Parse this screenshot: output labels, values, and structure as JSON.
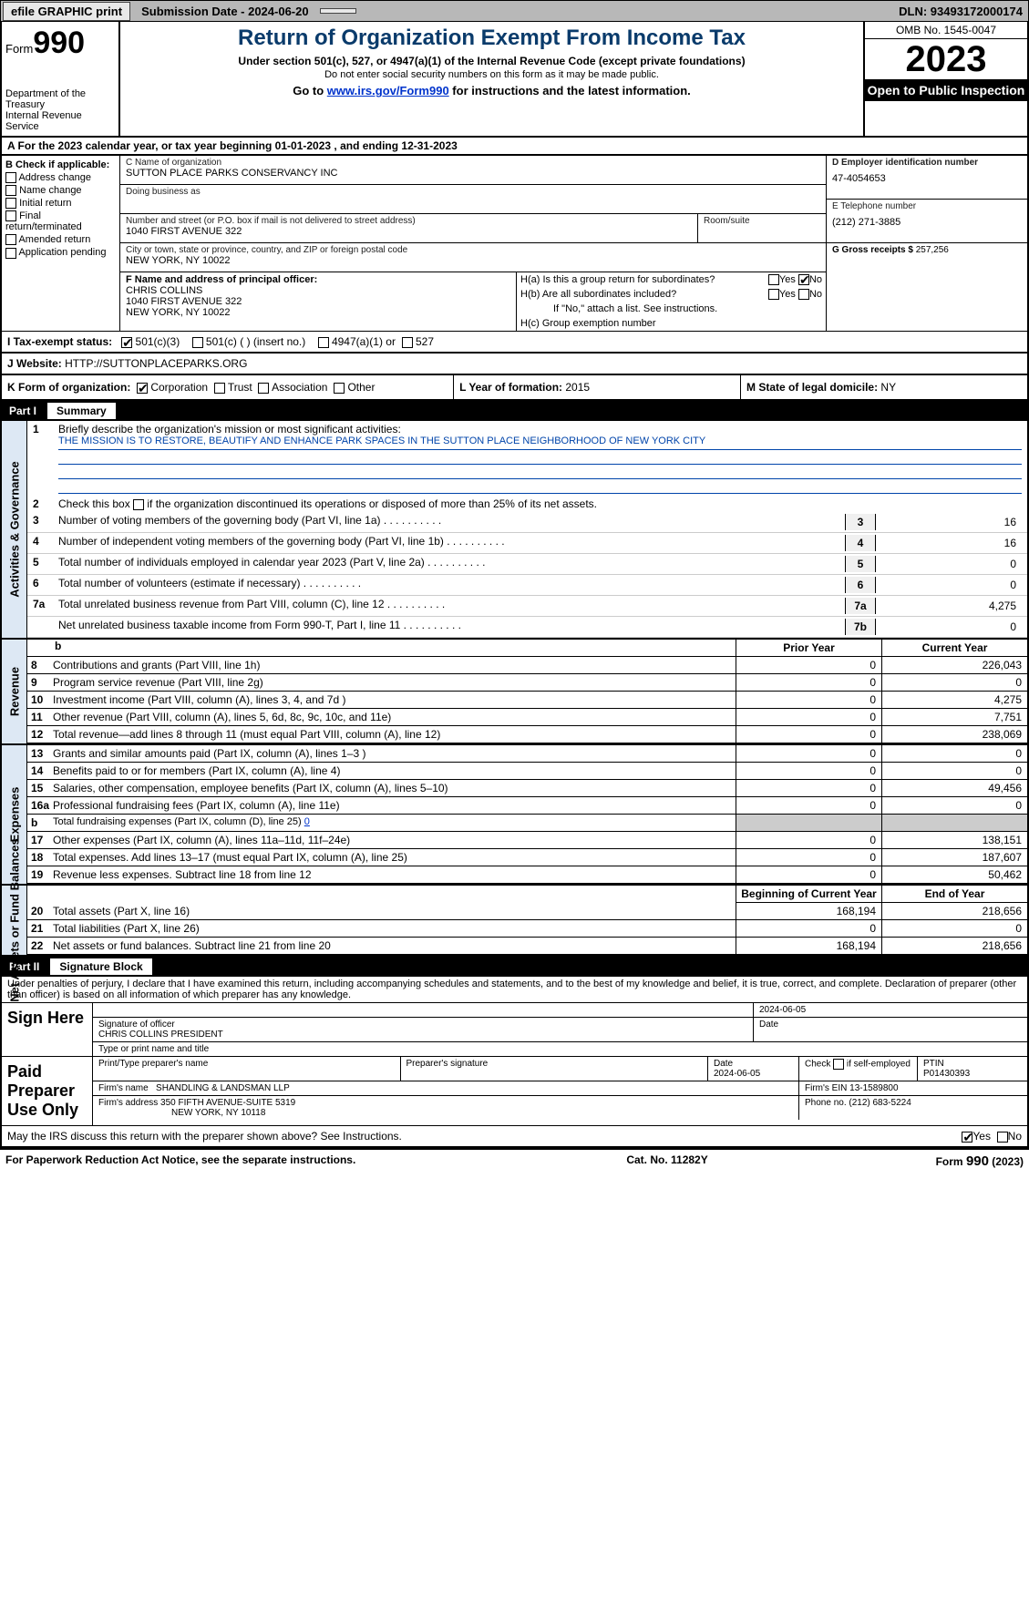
{
  "topbar": {
    "efile": "efile GRAPHIC print",
    "subdate_label": "Submission Date - 2024-06-20",
    "dln": "DLN: 93493172000174"
  },
  "header": {
    "form_label": "Form",
    "form_number": "990",
    "dept": "Department of the Treasury",
    "irs": "Internal Revenue Service",
    "title": "Return of Organization Exempt From Income Tax",
    "sub": "Under section 501(c), 527, or 4947(a)(1) of the Internal Revenue Code (except private foundations)",
    "sub2": "Do not enter social security numbers on this form as it may be made public.",
    "goto_pre": "Go to ",
    "goto_link": "www.irs.gov/Form990",
    "goto_post": " for instructions and the latest information.",
    "omb": "OMB No. 1545-0047",
    "year": "2023",
    "inspect": "Open to Public Inspection"
  },
  "row_a": {
    "pre": "A For the 2023 calendar year, or tax year beginning ",
    "begin": "01-01-2023",
    "mid": "   , and ending ",
    "end": "12-31-2023"
  },
  "col_b": {
    "title": "B Check if applicable:",
    "opts": [
      "Address change",
      "Name change",
      "Initial return",
      "Final return/terminated",
      "Amended return",
      "Application pending"
    ]
  },
  "col_c": {
    "name_lbl": "C Name of organization",
    "name": "SUTTON PLACE PARKS CONSERVANCY INC",
    "dba_lbl": "Doing business as",
    "dba": "",
    "street_lbl": "Number and street (or P.O. box if mail is not delivered to street address)",
    "street": "1040 FIRST AVENUE 322",
    "room_lbl": "Room/suite",
    "city_lbl": "City or town, state or province, country, and ZIP or foreign postal code",
    "city": "NEW YORK, NY  10022",
    "officer_lbl": "F  Name and address of principal officer:",
    "officer_name": "CHRIS COLLINS",
    "officer_addr1": "1040 FIRST AVENUE 322",
    "officer_addr2": "NEW YORK, NY  10022"
  },
  "col_d": {
    "ein_lbl": "D Employer identification number",
    "ein": "47-4054653",
    "tel_lbl": "E Telephone number",
    "tel": "(212) 271-3885",
    "gross_lbl": "G Gross receipts $ ",
    "gross": "257,256"
  },
  "col_h": {
    "ha": "H(a)  Is this a group return for subordinates?",
    "hb": "H(b)  Are all subordinates included?",
    "hb_note": "If \"No,\" attach a list. See instructions.",
    "hc": "H(c)  Group exemption number ",
    "yes": "Yes",
    "no": "No"
  },
  "row_i": {
    "lbl": "I   Tax-exempt status:",
    "o1": "501(c)(3)",
    "o2": "501(c) (  ) (insert no.)",
    "o3": "4947(a)(1) or",
    "o4": "527"
  },
  "row_j": {
    "lbl": "J   Website: ",
    "val": "HTTP://SUTTONPLACEPARKS.ORG"
  },
  "row_k": {
    "lbl": "K Form of organization:",
    "o1": "Corporation",
    "o2": "Trust",
    "o3": "Association",
    "o4": "Other",
    "l_lbl": "L Year of formation: ",
    "l_val": "2015",
    "m_lbl": "M State of legal domicile: ",
    "m_val": "NY"
  },
  "part1": {
    "num": "Part I",
    "title": "Summary",
    "sections": {
      "gov": "Activities & Governance",
      "rev": "Revenue",
      "exp": "Expenses",
      "net": "Net Assets or Fund Balances"
    },
    "l1_lbl": "Briefly describe the organization's mission or most significant activities:",
    "l1_mission": "THE MISSION IS TO RESTORE, BEAUTIFY AND ENHANCE PARK SPACES IN THE SUTTON PLACE NEIGHBORHOOD OF NEW YORK CITY",
    "l2": "Check this box        if the organization discontinued its operations or disposed of more than 25% of its net assets.",
    "lines_gov": [
      {
        "n": "3",
        "t": "Number of voting members of the governing body (Part VI, line 1a)",
        "cell": "3",
        "v": "16"
      },
      {
        "n": "4",
        "t": "Number of independent voting members of the governing body (Part VI, line 1b)",
        "cell": "4",
        "v": "16"
      },
      {
        "n": "5",
        "t": "Total number of individuals employed in calendar year 2023 (Part V, line 2a)",
        "cell": "5",
        "v": "0"
      },
      {
        "n": "6",
        "t": "Total number of volunteers (estimate if necessary)",
        "cell": "6",
        "v": "0"
      },
      {
        "n": "7a",
        "t": "Total unrelated business revenue from Part VIII, column (C), line 12",
        "cell": "7a",
        "v": "4,275"
      },
      {
        "n": "",
        "t": "Net unrelated business taxable income from Form 990-T, Part I, line 11",
        "cell": "7b",
        "v": "0"
      }
    ],
    "hdr_prior": "Prior Year",
    "hdr_curr": "Current Year",
    "lines_rev": [
      {
        "n": "8",
        "t": "Contributions and grants (Part VIII, line 1h)",
        "p": "0",
        "c": "226,043"
      },
      {
        "n": "9",
        "t": "Program service revenue (Part VIII, line 2g)",
        "p": "0",
        "c": "0"
      },
      {
        "n": "10",
        "t": "Investment income (Part VIII, column (A), lines 3, 4, and 7d )",
        "p": "0",
        "c": "4,275"
      },
      {
        "n": "11",
        "t": "Other revenue (Part VIII, column (A), lines 5, 6d, 8c, 9c, 10c, and 11e)",
        "p": "0",
        "c": "7,751"
      },
      {
        "n": "12",
        "t": "Total revenue—add lines 8 through 11 (must equal Part VIII, column (A), line 12)",
        "p": "0",
        "c": "238,069"
      }
    ],
    "lines_exp": [
      {
        "n": "13",
        "t": "Grants and similar amounts paid (Part IX, column (A), lines 1–3 )",
        "p": "0",
        "c": "0"
      },
      {
        "n": "14",
        "t": "Benefits paid to or for members (Part IX, column (A), line 4)",
        "p": "0",
        "c": "0"
      },
      {
        "n": "15",
        "t": "Salaries, other compensation, employee benefits (Part IX, column (A), lines 5–10)",
        "p": "0",
        "c": "49,456"
      },
      {
        "n": "16a",
        "t": "Professional fundraising fees (Part IX, column (A), line 11e)",
        "p": "0",
        "c": "0"
      },
      {
        "n": "b",
        "t": "Total fundraising expenses (Part IX, column (D), line 25) ",
        "fund": "0",
        "shade": true
      },
      {
        "n": "17",
        "t": "Other expenses (Part IX, column (A), lines 11a–11d, 11f–24e)",
        "p": "0",
        "c": "138,151"
      },
      {
        "n": "18",
        "t": "Total expenses. Add lines 13–17 (must equal Part IX, column (A), line 25)",
        "p": "0",
        "c": "187,607"
      },
      {
        "n": "19",
        "t": "Revenue less expenses. Subtract line 18 from line 12",
        "p": "0",
        "c": "50,462"
      }
    ],
    "hdr_begin": "Beginning of Current Year",
    "hdr_end": "End of Year",
    "lines_net": [
      {
        "n": "20",
        "t": "Total assets (Part X, line 16)",
        "p": "168,194",
        "c": "218,656"
      },
      {
        "n": "21",
        "t": "Total liabilities (Part X, line 26)",
        "p": "0",
        "c": "0"
      },
      {
        "n": "22",
        "t": "Net assets or fund balances. Subtract line 21 from line 20",
        "p": "168,194",
        "c": "218,656"
      }
    ]
  },
  "part2": {
    "num": "Part II",
    "title": "Signature Block",
    "text": "Under penalties of perjury, I declare that I have examined this return, including accompanying schedules and statements, and to the best of my knowledge and belief, it is true, correct, and complete. Declaration of preparer (other than officer) is based on all information of which preparer has any knowledge.",
    "sign_here": "Sign Here",
    "sig_date": "2024-06-05",
    "sig_lbl": "Signature of officer",
    "officer": "CHRIS COLLINS  PRESIDENT",
    "type_lbl": "Type or print name and title",
    "date_lbl": "Date",
    "paid": "Paid Preparer Use Only",
    "prep_name_lbl": "Print/Type preparer's name",
    "prep_sig_lbl": "Preparer's signature",
    "prep_date_lbl": "Date",
    "prep_date": "2024-06-05",
    "self_emp": "Check        if self-employed",
    "ptin_lbl": "PTIN",
    "ptin": "P01430393",
    "firm_name_lbl": "Firm's name   ",
    "firm_name": "SHANDLING & LANDSMAN LLP",
    "firm_ein_lbl": "Firm's EIN  ",
    "firm_ein": "13-1589800",
    "firm_addr_lbl": "Firm's address ",
    "firm_addr": "350 FIFTH AVENUE-SUITE 5319",
    "firm_city": "NEW YORK, NY  10118",
    "phone_lbl": "Phone no. ",
    "phone": "(212) 683-5224",
    "may_irs": "May the IRS discuss this return with the preparer shown above? See Instructions.",
    "yes": "Yes",
    "no": "No"
  },
  "footer": {
    "f1": "For Paperwork Reduction Act Notice, see the separate instructions.",
    "f2": "Cat. No. 11282Y",
    "f3_pre": "Form ",
    "f3_form": "990",
    "f3_post": " (2023)"
  }
}
